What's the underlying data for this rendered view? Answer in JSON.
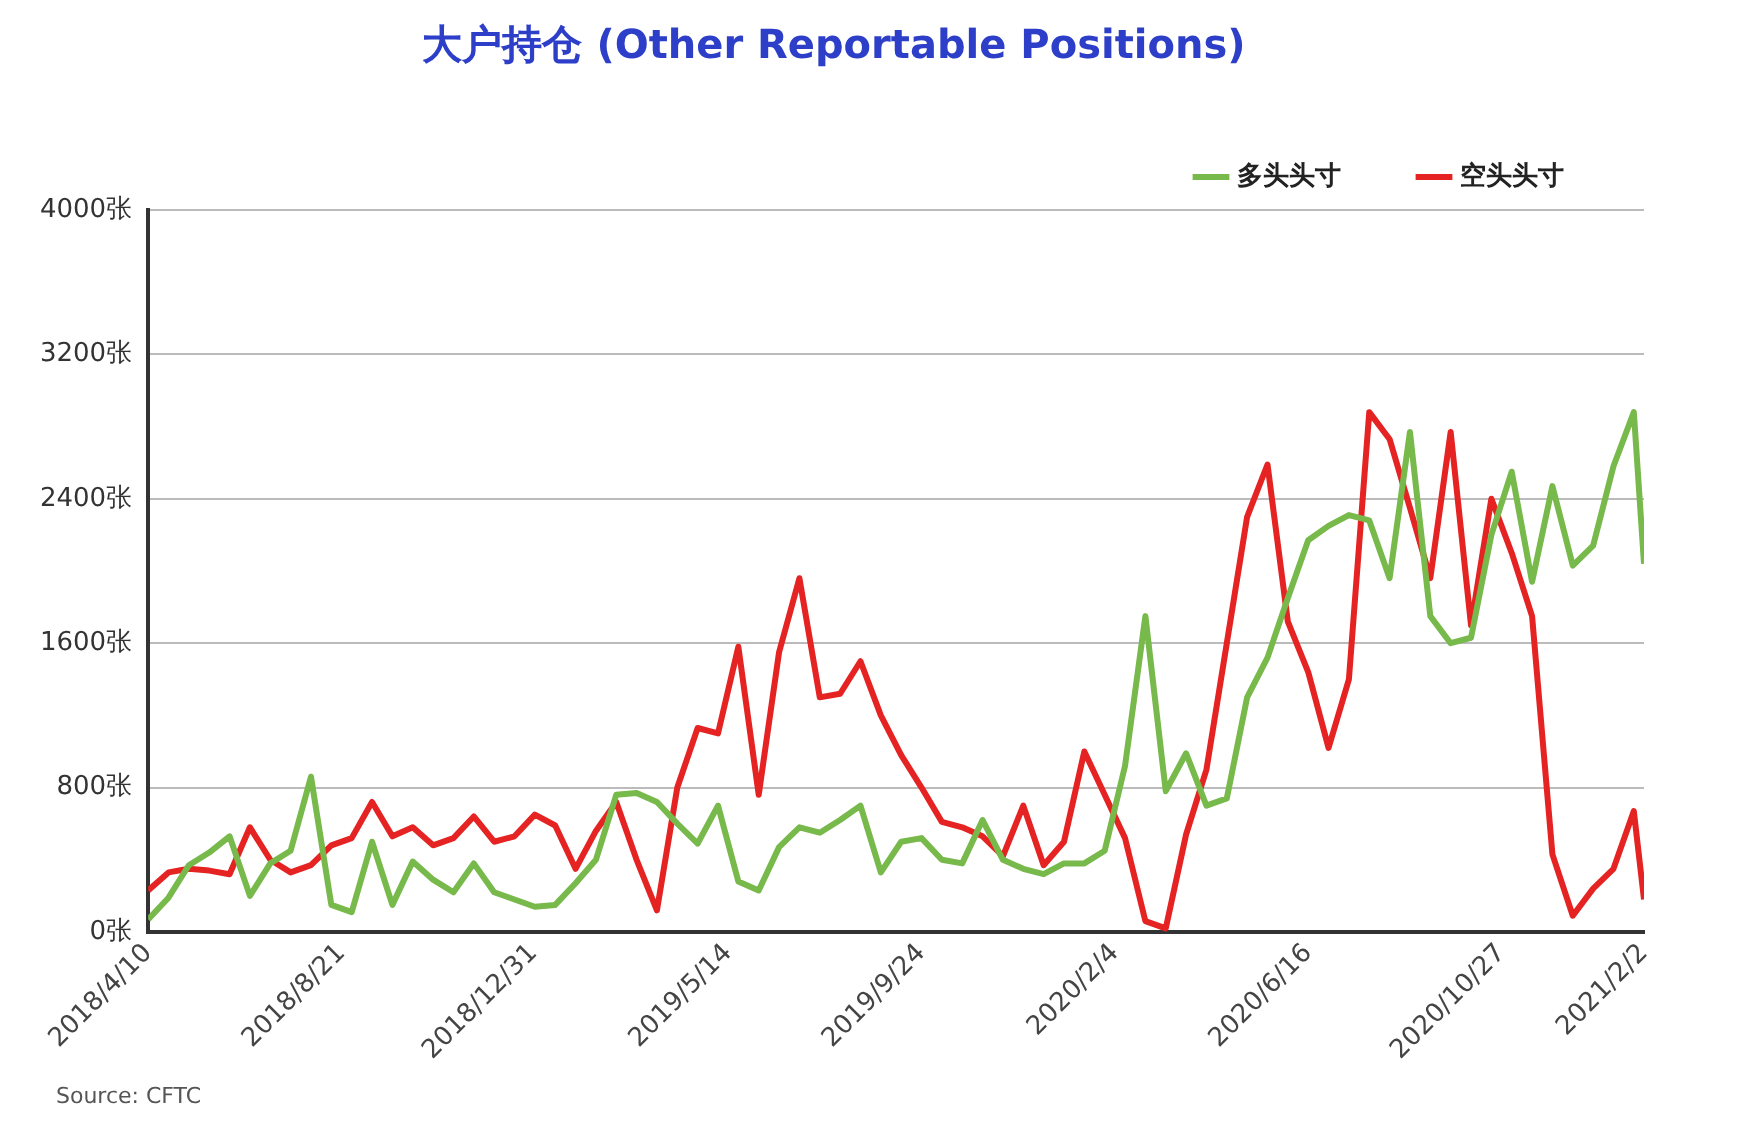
{
  "chart_data": {
    "type": "line",
    "title": "大户持仓 (Other Reportable Positions)",
    "annotations": [
      "Source: CFTC"
    ],
    "x": [
      "2018-04-10",
      "2018-04-24",
      "2018-05-08",
      "2018-05-22",
      "2018-06-05",
      "2018-06-19",
      "2018-07-03",
      "2018-07-17",
      "2018-07-31",
      "2018-08-14",
      "2018-08-28",
      "2018-09-11",
      "2018-09-25",
      "2018-10-09",
      "2018-10-23",
      "2018-11-06",
      "2018-11-20",
      "2018-12-04",
      "2018-12-18",
      "2019-01-01",
      "2019-01-15",
      "2019-01-29",
      "2019-02-12",
      "2019-02-26",
      "2019-03-12",
      "2019-03-26",
      "2019-04-09",
      "2019-04-23",
      "2019-05-07",
      "2019-05-21",
      "2019-06-04",
      "2019-06-18",
      "2019-07-02",
      "2019-07-16",
      "2019-07-30",
      "2019-08-13",
      "2019-08-27",
      "2019-09-10",
      "2019-09-24",
      "2019-10-08",
      "2019-10-22",
      "2019-11-05",
      "2019-11-19",
      "2019-12-03",
      "2019-12-17",
      "2019-12-31",
      "2020-01-14",
      "2020-01-28",
      "2020-02-11",
      "2020-02-25",
      "2020-03-10",
      "2020-03-24",
      "2020-04-07",
      "2020-04-21",
      "2020-05-05",
      "2020-05-19",
      "2020-06-02",
      "2020-06-16",
      "2020-06-30",
      "2020-07-14",
      "2020-07-28",
      "2020-08-11",
      "2020-08-25",
      "2020-09-08",
      "2020-09-22",
      "2020-10-06",
      "2020-10-20",
      "2020-11-03",
      "2020-11-17",
      "2020-12-01",
      "2020-12-15",
      "2020-12-29",
      "2021-01-12",
      "2021-01-26",
      "2021-02-02"
    ],
    "series": [
      {
        "name": "多头头寸",
        "color": "#77b94a",
        "values": [
          70,
          190,
          370,
          440,
          530,
          200,
          380,
          450,
          860,
          150,
          110,
          500,
          150,
          390,
          290,
          220,
          380,
          220,
          180,
          140,
          150,
          270,
          400,
          760,
          770,
          720,
          600,
          490,
          700,
          280,
          230,
          470,
          580,
          550,
          620,
          700,
          330,
          500,
          520,
          400,
          380,
          620,
          400,
          350,
          320,
          380,
          380,
          450,
          920,
          1750,
          780,
          990,
          700,
          740,
          1300,
          1520,
          1850,
          2170,
          2250,
          2310,
          2280,
          1960,
          2770,
          1750,
          1600,
          1630,
          2200,
          2550,
          1940,
          2470,
          2030,
          2140,
          2580,
          2880,
          2040
        ]
      },
      {
        "name": "空头头寸",
        "color": "#e52323",
        "values": [
          230,
          330,
          350,
          340,
          320,
          580,
          400,
          330,
          370,
          480,
          520,
          720,
          530,
          580,
          480,
          520,
          640,
          500,
          530,
          650,
          590,
          350,
          560,
          720,
          400,
          120,
          800,
          1130,
          1100,
          1580,
          760,
          1550,
          1960,
          1300,
          1320,
          1500,
          1200,
          980,
          800,
          610,
          580,
          530,
          420,
          700,
          370,
          500,
          1000,
          760,
          520,
          60,
          20,
          540,
          900,
          1600,
          2300,
          2590,
          1720,
          1440,
          1020,
          1400,
          2880,
          2730,
          2350,
          1960,
          2770,
          1700,
          2400,
          2100,
          1750,
          430,
          90,
          240,
          350,
          670,
          180
        ]
      }
    ],
    "xlim": [
      "2018-04-10",
      "2021-02-02"
    ],
    "xticks": [
      {
        "value": "2018-04-10",
        "label": "2018/4/10"
      },
      {
        "value": "2018-08-21",
        "label": "2018/8/21"
      },
      {
        "value": "2018-12-31",
        "label": "2018/12/31"
      },
      {
        "value": "2019-05-14",
        "label": "2019/5/14"
      },
      {
        "value": "2019-09-24",
        "label": "2019/9/24"
      },
      {
        "value": "2020-02-04",
        "label": "2020/2/4"
      },
      {
        "value": "2020-06-16",
        "label": "2020/6/16"
      },
      {
        "value": "2020-10-27",
        "label": "2020/10/27"
      },
      {
        "value": "2021-02-02",
        "label": "2021/2/2"
      }
    ],
    "ylim": [
      0,
      4000
    ],
    "yticks": [
      {
        "value": 0,
        "label": "0张"
      },
      {
        "value": 800,
        "label": "800张"
      },
      {
        "value": 1600,
        "label": "1600张"
      },
      {
        "value": 2400,
        "label": "2400张"
      },
      {
        "value": 3200,
        "label": "3200张"
      },
      {
        "value": 4000,
        "label": "4000张"
      }
    ],
    "grid": "y",
    "legend": "top right",
    "marker": "none",
    "line_style": "solid"
  }
}
